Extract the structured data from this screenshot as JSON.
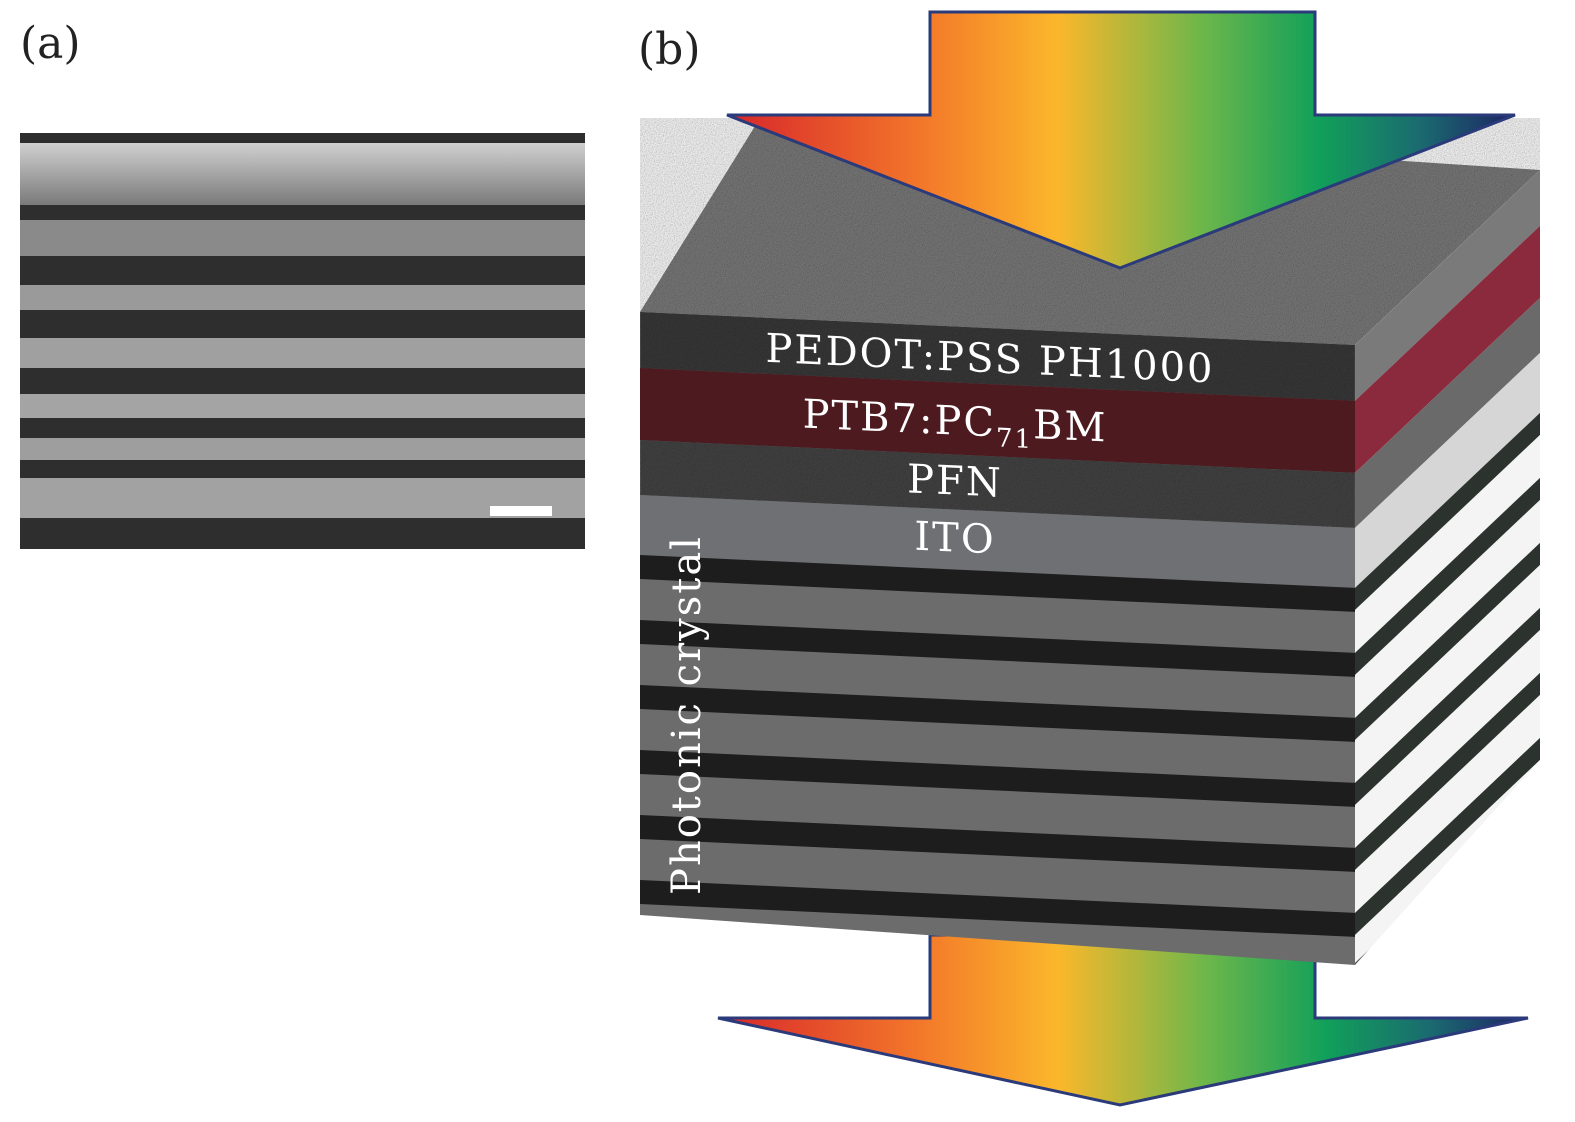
{
  "panels": [
    {
      "label": "(a)"
    },
    {
      "label": "(b)"
    }
  ],
  "layers": [
    {
      "label": "PEDOT:PSS PH1000"
    },
    {
      "label_parts": [
        "PTB7:PC",
        "71",
        "BM"
      ]
    },
    {
      "label": "PFN"
    },
    {
      "label": "ITO"
    }
  ],
  "side_label": "Photonic crystal"
}
